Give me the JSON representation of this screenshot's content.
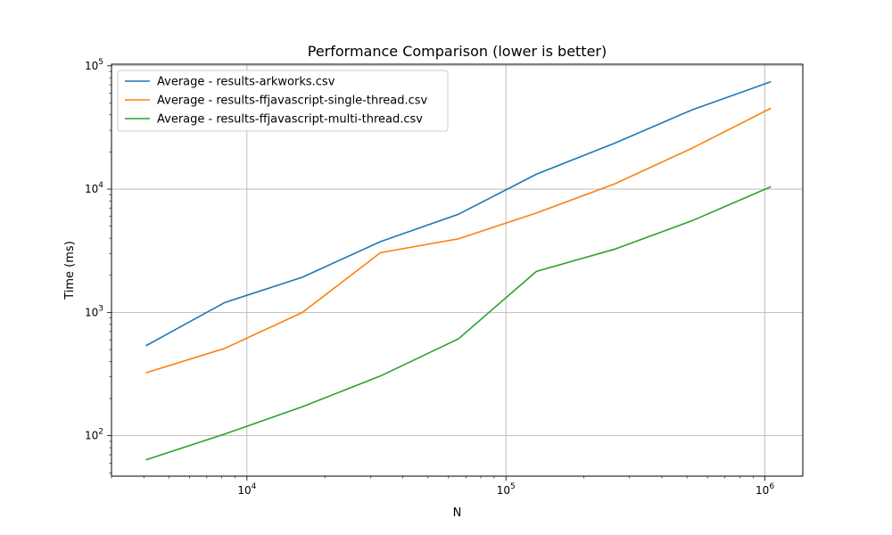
{
  "chart_data": {
    "type": "line",
    "title": "Performance Comparison (lower is better)",
    "xlabel": "N",
    "ylabel": "Time (ms)",
    "xscale": "log",
    "yscale": "log",
    "xlim": [
      3000,
      1400000
    ],
    "ylim": [
      47,
      103000
    ],
    "grid": true,
    "legend_position": "top-left",
    "x": [
      4096,
      8192,
      16384,
      32768,
      65536,
      131072,
      262144,
      524288,
      1048576
    ],
    "x_ticks": [
      {
        "value": 10000,
        "base": "10",
        "exp": "4"
      },
      {
        "value": 100000,
        "base": "10",
        "exp": "5"
      },
      {
        "value": 1000000,
        "base": "10",
        "exp": "6"
      }
    ],
    "y_ticks": [
      {
        "value": 100,
        "base": "10",
        "exp": "2"
      },
      {
        "value": 1000,
        "base": "10",
        "exp": "3"
      },
      {
        "value": 10000,
        "base": "10",
        "exp": "4"
      },
      {
        "value": 100000,
        "base": "10",
        "exp": "5"
      }
    ],
    "series": [
      {
        "name": "Average - results-arkworks.csv",
        "color": "#1f77b4",
        "values": [
          540,
          1200,
          1930,
          3750,
          6250,
          13200,
          23500,
          44000,
          74000
        ]
      },
      {
        "name": "Average - results-ffjavascript-single-thread.csv",
        "color": "#ff7f0e",
        "values": [
          325,
          510,
          1000,
          3050,
          3950,
          6400,
          11000,
          21500,
          45000
        ]
      },
      {
        "name": "Average - results-ffjavascript-multi-thread.csv",
        "color": "#2ca02c",
        "values": [
          64,
          103,
          172,
          305,
          610,
          2150,
          3250,
          5550,
          10400
        ]
      }
    ]
  }
}
